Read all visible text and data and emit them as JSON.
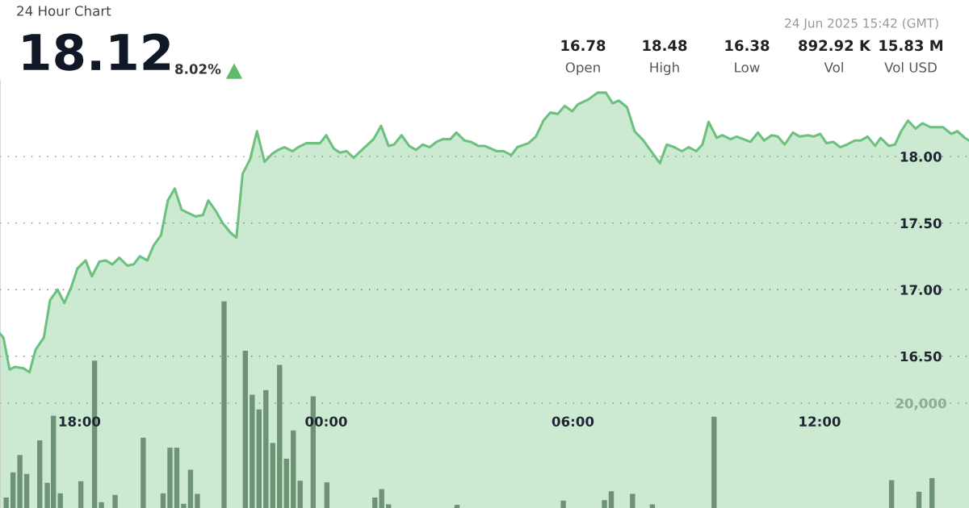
{
  "chart_data": {
    "type": "area",
    "subtitle": "24 Hour Chart",
    "annotations": [
      "18.12",
      "8.02%",
      "24 Jun 2025 15:42 (GMT)",
      "16.78",
      "Open",
      "18.48",
      "High",
      "16.38",
      "Low",
      "892.92 K",
      "Vol",
      "15.83 M",
      "Vol USD"
    ],
    "series": [
      {
        "color": "#6cc17e",
        "x": [
          "2025-06-23T16:04",
          "2025-06-23T16:09",
          "2025-06-23T16:18",
          "2025-06-23T16:26",
          "2025-06-23T16:38",
          "2025-06-23T16:47",
          "2025-06-23T16:56",
          "2025-06-23T17:08",
          "2025-06-23T17:17",
          "2025-06-23T17:28",
          "2025-06-23T17:38",
          "2025-06-23T17:48",
          "2025-06-23T17:57",
          "2025-06-23T18:09",
          "2025-06-23T18:18",
          "2025-06-23T18:29",
          "2025-06-23T18:38",
          "2025-06-23T18:48",
          "2025-06-23T18:58",
          "2025-06-23T19:10",
          "2025-06-23T19:19",
          "2025-06-23T19:28",
          "2025-06-23T19:39",
          "2025-06-23T19:48",
          "2025-06-23T19:59",
          "2025-06-23T20:09",
          "2025-06-23T20:19",
          "2025-06-23T20:29",
          "2025-06-23T20:49",
          "2025-06-23T21:00",
          "2025-06-23T21:08",
          "2025-06-23T21:19",
          "2025-06-23T21:29",
          "2025-06-23T21:40",
          "2025-06-23T21:49",
          "2025-06-23T21:58",
          "2025-06-23T22:09",
          "2025-06-23T22:19",
          "2025-06-23T22:30",
          "2025-06-23T22:41",
          "2025-06-23T22:50",
          "2025-06-23T22:59",
          "2025-06-23T23:11",
          "2025-06-23T23:19",
          "2025-06-23T23:31",
          "2025-06-23T23:51",
          "2025-06-24T00:00",
          "2025-06-24T00:11",
          "2025-06-24T00:20",
          "2025-06-24T00:30",
          "2025-06-24T00:40",
          "2025-06-24T00:50",
          "2025-06-24T01:09",
          "2025-06-24T01:20",
          "2025-06-24T01:31",
          "2025-06-24T01:39",
          "2025-06-24T01:50",
          "2025-06-24T02:01",
          "2025-06-24T02:11",
          "2025-06-24T02:21",
          "2025-06-24T02:31",
          "2025-06-24T02:41",
          "2025-06-24T02:50",
          "2025-06-24T03:01",
          "2025-06-24T03:10",
          "2025-06-24T03:22",
          "2025-06-24T03:31",
          "2025-06-24T03:42",
          "2025-06-24T03:51",
          "2025-06-24T04:09",
          "2025-06-24T04:19",
          "2025-06-24T04:30",
          "2025-06-24T04:39",
          "2025-06-24T04:55",
          "2025-06-24T05:06",
          "2025-06-24T05:17",
          "2025-06-24T05:27",
          "2025-06-24T05:38",
          "2025-06-24T05:48",
          "2025-06-24T05:59",
          "2025-06-24T06:07",
          "2025-06-24T06:23",
          "2025-06-24T06:36",
          "2025-06-24T06:48",
          "2025-06-24T06:58",
          "2025-06-24T07:07",
          "2025-06-24T07:19",
          "2025-06-24T07:30",
          "2025-06-24T07:43",
          "2025-06-24T07:57",
          "2025-06-24T08:07",
          "2025-06-24T08:17",
          "2025-06-24T08:28",
          "2025-06-24T08:39",
          "2025-06-24T08:49",
          "2025-06-24T09:00",
          "2025-06-24T09:09",
          "2025-06-24T09:18",
          "2025-06-24T09:30",
          "2025-06-24T09:38",
          "2025-06-24T09:50",
          "2025-06-24T09:59",
          "2025-06-24T10:19",
          "2025-06-24T10:30",
          "2025-06-24T10:39",
          "2025-06-24T10:50",
          "2025-06-24T10:59",
          "2025-06-24T11:09",
          "2025-06-24T11:21",
          "2025-06-24T11:31",
          "2025-06-24T11:43",
          "2025-06-24T11:51",
          "2025-06-24T12:01",
          "2025-06-24T12:10",
          "2025-06-24T12:20",
          "2025-06-24T12:30",
          "2025-06-24T12:40",
          "2025-06-24T12:51",
          "2025-06-24T13:00",
          "2025-06-24T13:10",
          "2025-06-24T13:21",
          "2025-06-24T13:29",
          "2025-06-24T13:41",
          "2025-06-24T13:50",
          "2025-06-24T13:59",
          "2025-06-24T14:09",
          "2025-06-24T14:20",
          "2025-06-24T14:30",
          "2025-06-24T14:42",
          "2025-06-24T15:00",
          "2025-06-24T15:12",
          "2025-06-24T15:21",
          "2025-06-24T15:32",
          "2025-06-24T15:38"
        ],
        "values": [
          16.67,
          16.64,
          16.4,
          16.42,
          16.41,
          16.38,
          16.55,
          16.64,
          16.92,
          17.0,
          16.9,
          17.02,
          17.16,
          17.22,
          17.1,
          17.21,
          17.22,
          17.19,
          17.24,
          17.18,
          17.19,
          17.25,
          17.22,
          17.33,
          17.41,
          17.67,
          17.76,
          17.6,
          17.55,
          17.56,
          17.67,
          17.59,
          17.5,
          17.43,
          17.39,
          17.87,
          17.98,
          18.19,
          17.96,
          18.02,
          18.05,
          18.07,
          18.04,
          18.07,
          18.1,
          18.1,
          18.16,
          18.06,
          18.03,
          18.04,
          17.99,
          18.04,
          18.13,
          18.23,
          18.08,
          18.09,
          18.16,
          18.08,
          18.05,
          18.09,
          18.07,
          18.11,
          18.13,
          18.13,
          18.18,
          18.12,
          18.11,
          18.08,
          18.08,
          18.04,
          18.04,
          18.01,
          18.07,
          18.1,
          18.15,
          18.27,
          18.33,
          18.32,
          18.38,
          18.34,
          18.39,
          18.43,
          18.48,
          18.48,
          18.4,
          18.42,
          18.37,
          18.19,
          18.12,
          18.02,
          17.95,
          18.09,
          18.07,
          18.04,
          18.07,
          18.04,
          18.09,
          18.26,
          18.14,
          18.16,
          18.13,
          18.15,
          18.11,
          18.18,
          18.12,
          18.16,
          18.15,
          18.09,
          18.18,
          18.15,
          18.16,
          18.15,
          18.17,
          18.1,
          18.11,
          18.07,
          18.09,
          18.12,
          18.12,
          18.15,
          18.08,
          18.14,
          18.08,
          18.09,
          18.19,
          18.27,
          18.21,
          18.25,
          18.22,
          18.22,
          18.17,
          18.19,
          18.14,
          18.12
        ]
      },
      {
        "type": "bar",
        "axis": "y2",
        "color": "#6f7a70",
        "x": [
          "2025-06-23T16:13",
          "2025-06-23T16:23",
          "2025-06-23T16:33",
          "2025-06-23T16:43",
          "2025-06-23T17:02",
          "2025-06-23T17:13",
          "2025-06-23T17:22",
          "2025-06-23T17:32",
          "2025-06-23T18:02",
          "2025-06-23T18:22",
          "2025-06-23T18:32",
          "2025-06-23T18:52",
          "2025-06-23T19:33",
          "2025-06-23T20:02",
          "2025-06-23T20:12",
          "2025-06-23T20:22",
          "2025-06-23T20:32",
          "2025-06-23T20:42",
          "2025-06-23T20:52",
          "2025-06-23T21:31",
          "2025-06-23T22:02",
          "2025-06-23T22:12",
          "2025-06-23T22:22",
          "2025-06-23T22:32",
          "2025-06-23T22:42",
          "2025-06-23T22:52",
          "2025-06-23T23:02",
          "2025-06-23T23:12",
          "2025-06-23T23:22",
          "2025-06-23T23:41",
          "2025-06-24T00:01",
          "2025-06-24T01:11",
          "2025-06-24T01:21",
          "2025-06-24T01:31",
          "2025-06-24T03:11",
          "2025-06-24T05:46",
          "2025-06-24T06:46",
          "2025-06-24T06:56",
          "2025-06-24T07:27",
          "2025-06-24T07:56",
          "2025-06-24T09:26",
          "2025-06-24T13:45",
          "2025-06-24T14:25",
          "2025-06-24T14:44"
        ],
        "values": [
          2000,
          6800,
          10100,
          6500,
          12900,
          4800,
          17600,
          2800,
          5100,
          28100,
          1100,
          2500,
          13400,
          2800,
          11500,
          11500,
          800,
          7300,
          2700,
          39400,
          30000,
          21600,
          18800,
          22500,
          12400,
          27300,
          9400,
          14800,
          5200,
          21300,
          4900,
          2000,
          3600,
          700,
          600,
          1400,
          1500,
          3200,
          2700,
          700,
          17400,
          5300,
          3100,
          5700
        ]
      }
    ],
    "xlim": [
      "2025-06-23T16:04",
      "2025-06-24T15:38"
    ],
    "xticks": [
      {
        "value": "2025-06-23T18:00",
        "label": "18:00"
      },
      {
        "value": "2025-06-24T00:00",
        "label": "00:00"
      },
      {
        "value": "2025-06-24T06:00",
        "label": "06:00"
      },
      {
        "value": "2025-06-24T12:00",
        "label": "12:00"
      }
    ],
    "ylim": [
      15.36,
      18.57
    ],
    "yticks": [
      {
        "value": 16.5,
        "label": "16.50"
      },
      {
        "value": 17.0,
        "label": "17.00"
      },
      {
        "value": 17.5,
        "label": "17.50"
      },
      {
        "value": 18.0,
        "label": "18.00"
      }
    ],
    "y2lim": [
      0,
      81500
    ],
    "y2ticks": [
      {
        "value": 20000,
        "label": "20,000"
      }
    ],
    "grid": "y"
  }
}
